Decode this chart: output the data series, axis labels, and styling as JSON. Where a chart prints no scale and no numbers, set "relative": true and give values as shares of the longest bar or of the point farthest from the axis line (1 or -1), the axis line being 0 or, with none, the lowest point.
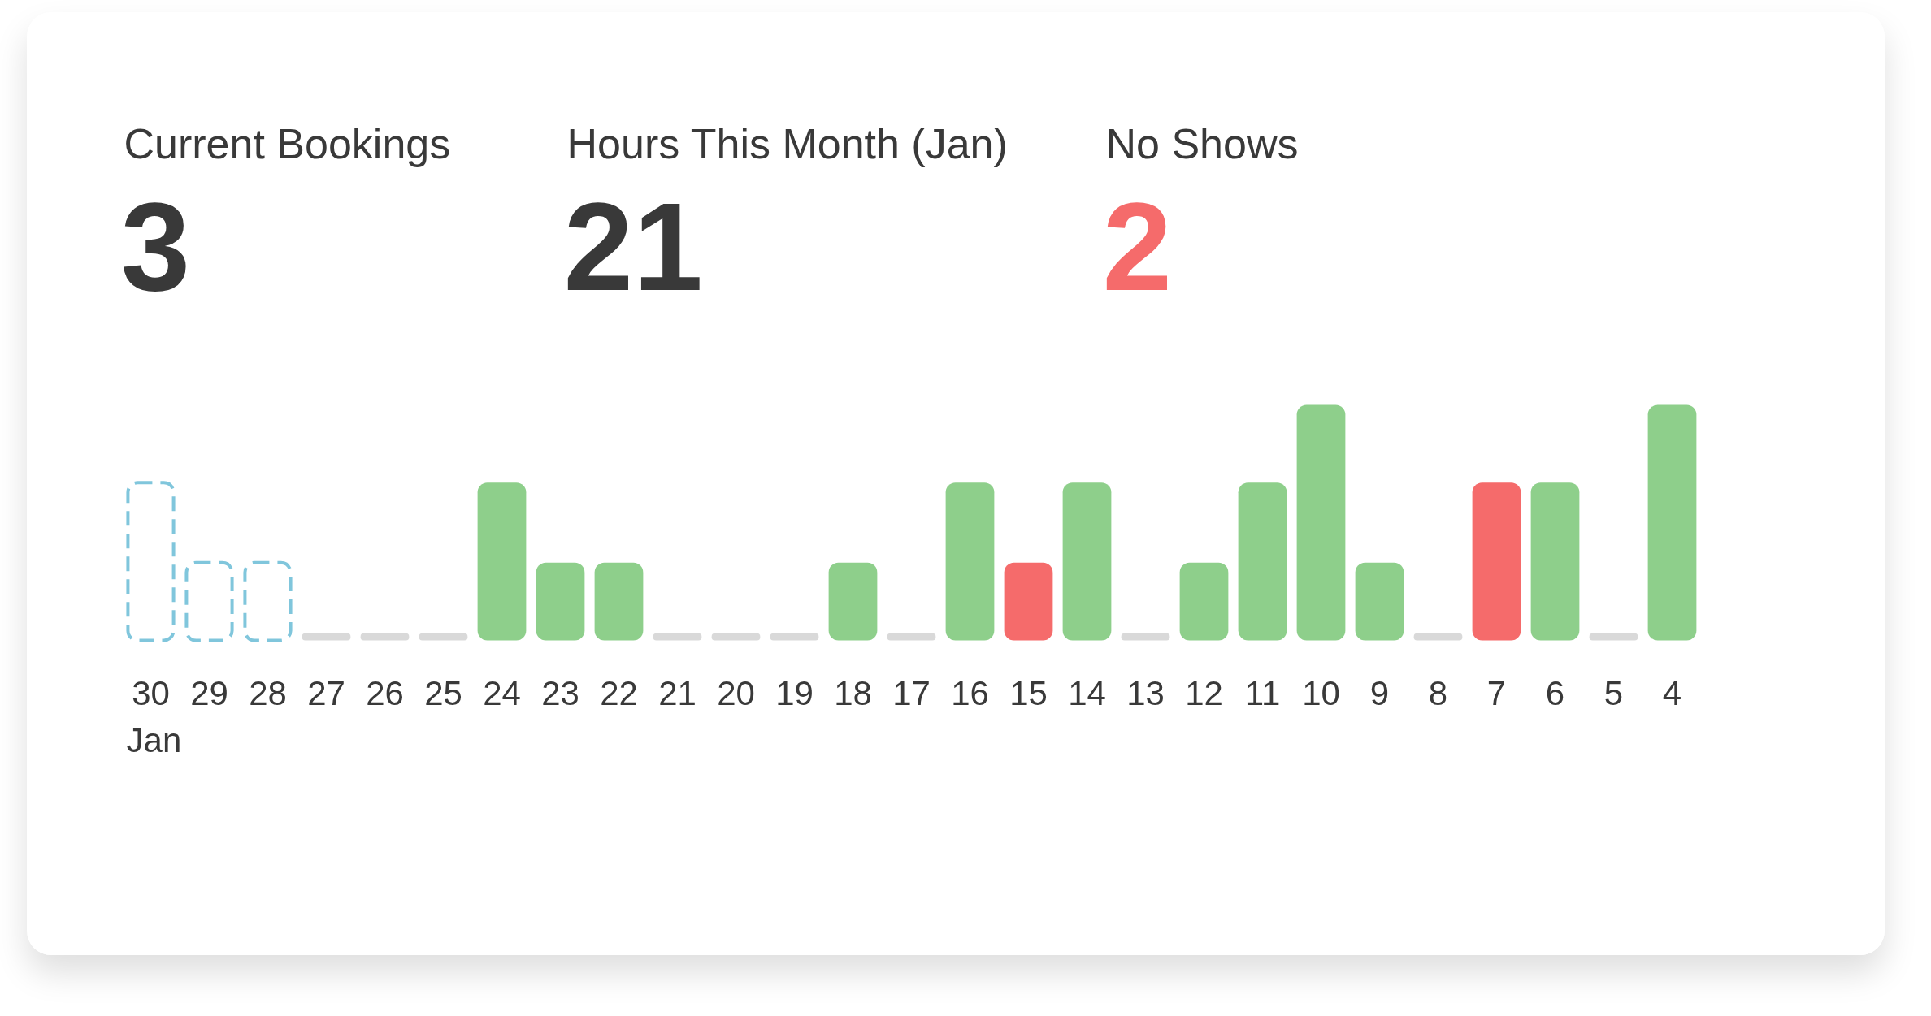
{
  "chart_data": [
    {
      "type": "other",
      "title": "Current Bookings",
      "annotations": [
        "3"
      ],
      "color": "#393939"
    },
    {
      "type": "other",
      "title": "Hours This Month (Jan)",
      "annotations": [
        "21"
      ],
      "color": "#393939"
    },
    {
      "type": "other",
      "title": "No Shows",
      "annotations": [
        "2"
      ],
      "color": "#f56b6b"
    },
    {
      "type": "bar",
      "relative": true,
      "stacked": true,
      "xlabel": "Jan",
      "categories": [
        "30",
        "29",
        "28",
        "27",
        "26",
        "25",
        "24",
        "23",
        "22",
        "21",
        "20",
        "19",
        "18",
        "17",
        "16",
        "15",
        "14",
        "13",
        "12",
        "11",
        "10",
        "9",
        "8",
        "7",
        "6",
        "5",
        "4"
      ],
      "series": [
        {
          "color": "#80c6dc",
          "line_style": "dashed",
          "values": [
            0.67,
            0.33,
            0.33,
            null,
            null,
            null,
            null,
            null,
            null,
            null,
            null,
            null,
            null,
            null,
            null,
            null,
            null,
            null,
            null,
            null,
            null,
            null,
            null,
            null,
            null,
            null,
            null
          ]
        },
        {
          "color": "#8ecf8b",
          "values": [
            null,
            null,
            null,
            null,
            null,
            null,
            0.67,
            0.33,
            0.33,
            null,
            null,
            null,
            0.33,
            null,
            0.67,
            null,
            0.67,
            null,
            0.33,
            0.67,
            1,
            0.33,
            null,
            null,
            0.67,
            null,
            1
          ]
        },
        {
          "color": "#f56b6b",
          "values": [
            null,
            null,
            null,
            null,
            null,
            null,
            null,
            null,
            null,
            null,
            null,
            null,
            null,
            null,
            null,
            0.33,
            null,
            null,
            null,
            null,
            null,
            null,
            null,
            0.67,
            null,
            null,
            null
          ]
        },
        {
          "color": "#d9d9d9",
          "values": [
            null,
            null,
            null,
            0.03,
            0.03,
            0.03,
            null,
            null,
            null,
            0.03,
            0.03,
            0.03,
            null,
            0.03,
            null,
            null,
            null,
            0.03,
            null,
            null,
            null,
            null,
            0.03,
            null,
            null,
            0.03,
            null
          ]
        }
      ]
    }
  ]
}
